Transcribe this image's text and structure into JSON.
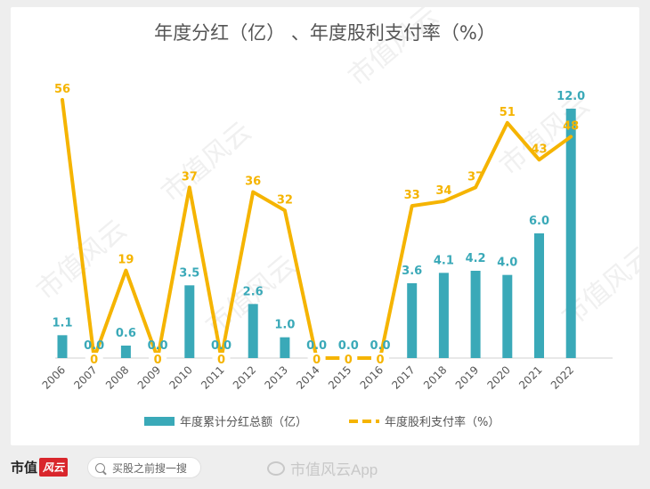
{
  "chart_data": {
    "type": "bar+line",
    "title": "年度分红（亿）  、年度股利支付率（%）",
    "categories": [
      "2006",
      "2007",
      "2008",
      "2009",
      "2010",
      "2011",
      "2012",
      "2013",
      "2014",
      "2015",
      "2016",
      "2017",
      "2018",
      "2019",
      "2020",
      "2021",
      "2022"
    ],
    "series": [
      {
        "name": "年度累计分红总额（亿）",
        "type": "bar",
        "color": "#3aa9b8",
        "values": [
          1.1,
          0.0,
          0.6,
          0.0,
          3.5,
          0.0,
          2.6,
          1.0,
          0.0,
          0.0,
          0.0,
          3.6,
          4.1,
          4.2,
          4.0,
          6.0,
          12.0
        ],
        "labels": [
          "1.1",
          "0.0",
          "0.6",
          "0.0",
          "3.5",
          "0.0",
          "2.6",
          "1.0",
          "0.0",
          "0.0",
          "0.0",
          "3.6",
          "4.1",
          "4.2",
          "4.0",
          "6.0",
          "12.0"
        ]
      },
      {
        "name": "年度股利支付率（%）",
        "type": "line",
        "color": "#f5b400",
        "values": [
          56,
          0,
          19,
          0,
          37,
          0,
          36,
          32,
          0,
          0,
          0,
          33,
          34,
          37,
          51,
          43,
          48
        ],
        "labels": [
          "56",
          "0",
          "19",
          "0",
          "37",
          "0",
          "36",
          "32",
          "0",
          "0",
          "0",
          "33",
          "34",
          "37",
          "51",
          "43",
          "48"
        ]
      }
    ],
    "bar_ylim": [
      0,
      12.0
    ],
    "line_ylim": [
      0,
      56
    ],
    "legend_position": "bottom"
  },
  "watermark": {
    "text": "市值风云"
  },
  "footer": {
    "brand_text": "市值",
    "brand_logo_text": "风云",
    "search_placeholder": "买股之前搜一搜",
    "app_mark": "市值风云App"
  }
}
